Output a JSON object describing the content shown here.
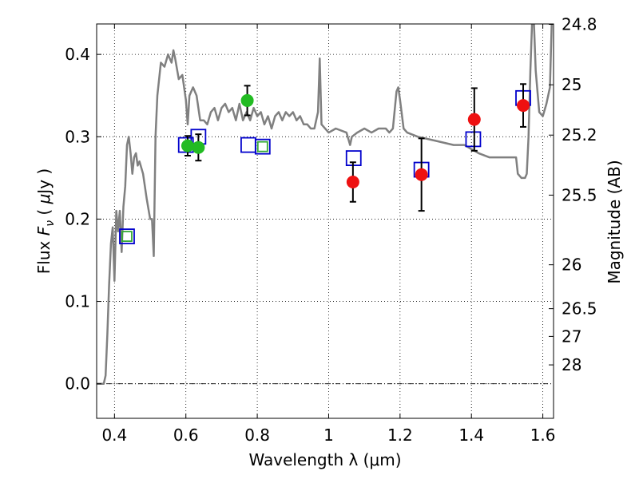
{
  "chart_data": {
    "type": "scatter",
    "xlabel": "Wavelength  λ (μm)",
    "ylabel": "Flux  F_ν  ( μJy )",
    "ylabel_parts": [
      "Flux  ",
      "F",
      "ν",
      "  ( ",
      "μ",
      "Jy )"
    ],
    "y2label": "Magnitude (AB)",
    "xlim": [
      0.35,
      1.63
    ],
    "ylim": [
      -0.042,
      0.437
    ],
    "grid": true,
    "x_ticks": [
      0.4,
      0.6,
      0.8,
      1.0,
      1.2,
      1.4,
      1.6
    ],
    "x_tick_labels": [
      "0.4",
      "0.6",
      "0.8",
      "1",
      "1.2",
      "1.4",
      "1.6"
    ],
    "y_ticks": [
      0.0,
      0.1,
      0.2,
      0.3,
      0.4
    ],
    "y_tick_labels": [
      "0.0",
      "0.1",
      "0.2",
      "0.3",
      "0.4"
    ],
    "magnitude_ticks": [
      {
        "label": "24.8",
        "flux": 0.4365
      },
      {
        "label": "25",
        "flux": 0.3631
      },
      {
        "label": "25.2",
        "flux": 0.302
      },
      {
        "label": "25.5",
        "flux": 0.2291
      },
      {
        "label": "26",
        "flux": 0.1445
      },
      {
        "label": "26.5",
        "flux": 0.0912
      },
      {
        "label": "27",
        "flux": 0.0575
      },
      {
        "label": "28",
        "flux": 0.0229
      }
    ],
    "series": [
      {
        "style": "line",
        "color": "#808080",
        "points": [
          [
            0.35,
            0.0
          ],
          [
            0.37,
            0.0
          ],
          [
            0.375,
            0.01
          ],
          [
            0.38,
            0.06
          ],
          [
            0.385,
            0.12
          ],
          [
            0.39,
            0.17
          ],
          [
            0.395,
            0.19
          ],
          [
            0.4,
            0.125
          ],
          [
            0.405,
            0.21
          ],
          [
            0.41,
            0.185
          ],
          [
            0.415,
            0.21
          ],
          [
            0.42,
            0.16
          ],
          [
            0.425,
            0.215
          ],
          [
            0.43,
            0.24
          ],
          [
            0.435,
            0.29
          ],
          [
            0.44,
            0.3
          ],
          [
            0.445,
            0.28
          ],
          [
            0.45,
            0.255
          ],
          [
            0.455,
            0.275
          ],
          [
            0.46,
            0.28
          ],
          [
            0.465,
            0.265
          ],
          [
            0.47,
            0.27
          ],
          [
            0.48,
            0.255
          ],
          [
            0.49,
            0.225
          ],
          [
            0.5,
            0.2
          ],
          [
            0.505,
            0.2
          ],
          [
            0.51,
            0.155
          ],
          [
            0.515,
            0.3
          ],
          [
            0.52,
            0.35
          ],
          [
            0.53,
            0.39
          ],
          [
            0.54,
            0.385
          ],
          [
            0.55,
            0.4
          ],
          [
            0.56,
            0.39
          ],
          [
            0.565,
            0.405
          ],
          [
            0.57,
            0.395
          ],
          [
            0.58,
            0.37
          ],
          [
            0.59,
            0.375
          ],
          [
            0.6,
            0.345
          ],
          [
            0.605,
            0.315
          ],
          [
            0.61,
            0.35
          ],
          [
            0.62,
            0.36
          ],
          [
            0.63,
            0.35
          ],
          [
            0.64,
            0.32
          ],
          [
            0.65,
            0.32
          ],
          [
            0.66,
            0.315
          ],
          [
            0.67,
            0.33
          ],
          [
            0.68,
            0.335
          ],
          [
            0.69,
            0.32
          ],
          [
            0.7,
            0.335
          ],
          [
            0.71,
            0.34
          ],
          [
            0.72,
            0.33
          ],
          [
            0.73,
            0.335
          ],
          [
            0.74,
            0.32
          ],
          [
            0.75,
            0.34
          ],
          [
            0.76,
            0.32
          ],
          [
            0.77,
            0.33
          ],
          [
            0.78,
            0.32
          ],
          [
            0.79,
            0.335
          ],
          [
            0.8,
            0.325
          ],
          [
            0.81,
            0.33
          ],
          [
            0.82,
            0.315
          ],
          [
            0.83,
            0.325
          ],
          [
            0.84,
            0.31
          ],
          [
            0.85,
            0.325
          ],
          [
            0.86,
            0.33
          ],
          [
            0.87,
            0.32
          ],
          [
            0.88,
            0.33
          ],
          [
            0.89,
            0.325
          ],
          [
            0.9,
            0.33
          ],
          [
            0.91,
            0.32
          ],
          [
            0.92,
            0.325
          ],
          [
            0.93,
            0.315
          ],
          [
            0.94,
            0.315
          ],
          [
            0.95,
            0.31
          ],
          [
            0.96,
            0.31
          ],
          [
            0.97,
            0.33
          ],
          [
            0.975,
            0.395
          ],
          [
            0.98,
            0.315
          ],
          [
            1.0,
            0.305
          ],
          [
            1.02,
            0.31
          ],
          [
            1.05,
            0.305
          ],
          [
            1.06,
            0.29
          ],
          [
            1.065,
            0.3
          ],
          [
            1.08,
            0.305
          ],
          [
            1.1,
            0.31
          ],
          [
            1.12,
            0.305
          ],
          [
            1.14,
            0.31
          ],
          [
            1.16,
            0.31
          ],
          [
            1.17,
            0.305
          ],
          [
            1.18,
            0.31
          ],
          [
            1.19,
            0.355
          ],
          [
            1.195,
            0.36
          ],
          [
            1.2,
            0.345
          ],
          [
            1.21,
            0.31
          ],
          [
            1.22,
            0.305
          ],
          [
            1.25,
            0.3
          ],
          [
            1.3,
            0.295
          ],
          [
            1.35,
            0.29
          ],
          [
            1.38,
            0.29
          ],
          [
            1.4,
            0.285
          ],
          [
            1.42,
            0.28
          ],
          [
            1.45,
            0.275
          ],
          [
            1.5,
            0.275
          ],
          [
            1.525,
            0.275
          ],
          [
            1.53,
            0.255
          ],
          [
            1.54,
            0.25
          ],
          [
            1.55,
            0.25
          ],
          [
            1.555,
            0.255
          ],
          [
            1.56,
            0.3
          ],
          [
            1.565,
            0.38
          ],
          [
            1.57,
            0.44
          ],
          [
            1.575,
            0.44
          ],
          [
            1.58,
            0.38
          ],
          [
            1.59,
            0.33
          ],
          [
            1.6,
            0.325
          ],
          [
            1.61,
            0.34
          ],
          [
            1.62,
            0.36
          ],
          [
            1.625,
            0.44
          ]
        ]
      },
      {
        "style": "open-square",
        "color": "#0000cc",
        "points": [
          [
            0.435,
            0.179
          ],
          [
            0.6,
            0.29
          ],
          [
            0.635,
            0.3
          ],
          [
            0.775,
            0.29
          ],
          [
            0.815,
            0.288
          ],
          [
            1.07,
            0.274
          ],
          [
            1.26,
            0.26
          ],
          [
            1.405,
            0.297
          ],
          [
            1.545,
            0.347
          ]
        ]
      },
      {
        "style": "open-square",
        "color": "#33aa33",
        "points": [
          [
            0.435,
            0.179
          ],
          [
            0.815,
            0.288
          ]
        ]
      },
      {
        "style": "filled-circle",
        "color": "#22bb22",
        "points": [
          {
            "x": 0.605,
            "y": 0.289,
            "yerr": 0.012
          },
          {
            "x": 0.635,
            "y": 0.287,
            "yerr": 0.016
          },
          {
            "x": 0.772,
            "y": 0.344,
            "yerr": 0.018
          }
        ]
      },
      {
        "style": "filled-circle",
        "color": "#ee1111",
        "points": [
          {
            "x": 1.068,
            "y": 0.245,
            "yerr": 0.024
          },
          {
            "x": 1.26,
            "y": 0.254,
            "yerr": 0.044
          },
          {
            "x": 1.408,
            "y": 0.321,
            "yerr": 0.038
          },
          {
            "x": 1.545,
            "y": 0.338,
            "yerr": 0.026
          }
        ]
      }
    ]
  }
}
